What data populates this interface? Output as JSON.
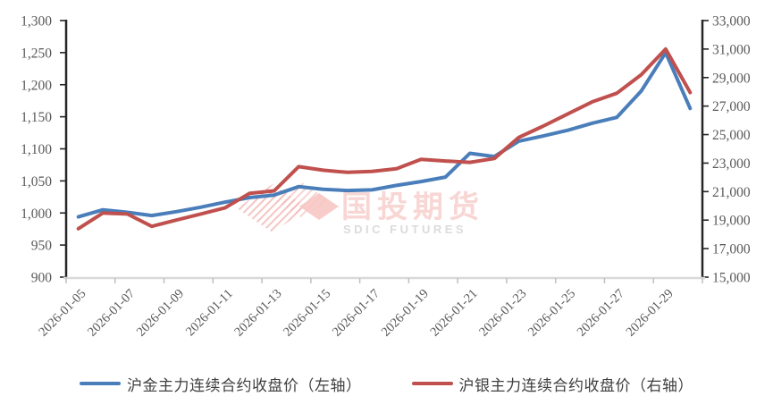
{
  "page": {
    "background": "#ffffff",
    "title": ""
  },
  "chart_data": {
    "type": "line",
    "title": "",
    "grid": false,
    "legend_position": "bottom",
    "x": [
      "2026-01-05",
      "2026-01-06",
      "2026-01-07",
      "2026-01-08",
      "2026-01-09",
      "2026-01-10",
      "2026-01-11",
      "2026-01-12",
      "2026-01-13",
      "2026-01-14",
      "2026-01-15",
      "2026-01-16",
      "2026-01-17",
      "2026-01-18",
      "2026-01-19",
      "2026-01-20",
      "2026-01-21",
      "2026-01-22",
      "2026-01-23",
      "2026-01-24",
      "2026-01-25",
      "2026-01-26",
      "2026-01-27",
      "2026-01-28",
      "2026-01-29",
      "2026-01-30"
    ],
    "x_tick_labels": [
      "2026-01-05",
      "2026-01-07",
      "2026-01-09",
      "2026-01-11",
      "2026-01-13",
      "2026-01-15",
      "2026-01-17",
      "2026-01-19",
      "2026-01-21",
      "2026-01-23",
      "2026-01-25",
      "2026-01-27",
      "2026-01-29"
    ],
    "series": [
      {
        "name": "沪金主力连续合约收盘价（左轴）",
        "axis": "left",
        "color": "#4a7eba",
        "values": [
          994,
          1005,
          1001,
          996,
          1002,
          1009,
          1017,
          1024,
          1028,
          1041,
          1037,
          1035,
          1036,
          1043,
          1049,
          1056,
          1093,
          1088,
          1112,
          1120,
          1129,
          1140,
          1149,
          1190,
          1250,
          1163
        ]
      },
      {
        "name": "沪银主力连续合约收盘价（右轴）",
        "axis": "right",
        "color": "#c0504d",
        "values": [
          18400,
          19500,
          19430,
          18560,
          19000,
          19430,
          19870,
          20880,
          21050,
          22750,
          22500,
          22350,
          22420,
          22600,
          23260,
          23150,
          23050,
          23320,
          24800,
          25600,
          26450,
          27300,
          27900,
          29200,
          31000,
          27950
        ]
      }
    ],
    "left_axis": {
      "min": 900,
      "max": 1300,
      "step": 50,
      "tick_labels": [
        "900",
        "950",
        "1,000",
        "1,050",
        "1,100",
        "1,150",
        "1,200",
        "1,250",
        "1,300"
      ]
    },
    "right_axis": {
      "min": 15000,
      "max": 33000,
      "step": 2000,
      "tick_labels": [
        "15,000",
        "17,000",
        "19,000",
        "21,000",
        "23,000",
        "25,000",
        "27,000",
        "29,000",
        "31,000",
        "33,000"
      ]
    }
  },
  "legend": {
    "gold_label": "沪金主力连续合约收盘价（左轴）",
    "silver_label": "沪银主力连续合约收盘价（右轴）"
  },
  "watermark": {
    "cn": "国投期货",
    "en": "SDIC FUTURES",
    "diamond_color": "#ef8f89",
    "stripe_color": "#e4736d",
    "cn_color": "#f2aeab",
    "en_color": "#b9b9b9"
  },
  "colors": {
    "axis_line": "#262626",
    "x_axis_line": "#d9d9d9",
    "x_axis_tick": "#bfbfbf",
    "tick_label": "#595959"
  }
}
